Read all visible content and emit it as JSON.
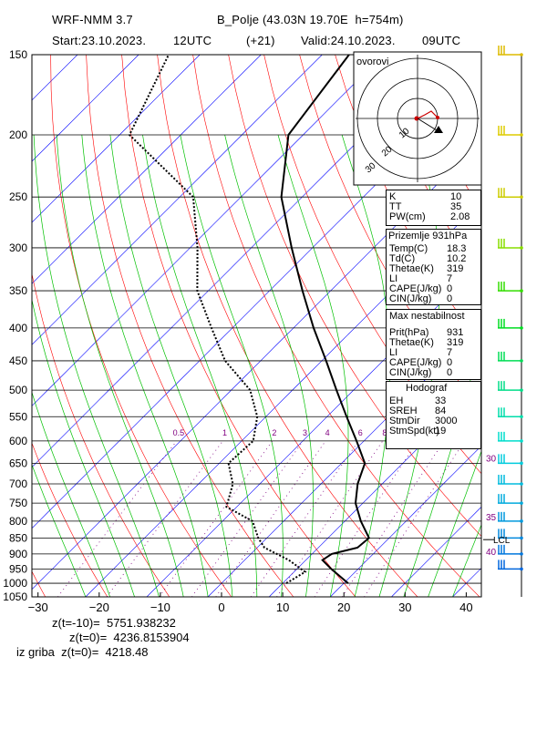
{
  "header": {
    "model": "WRF-NMM 3.7",
    "station": "B_Polje (43.03N 19.70E  h=754m)",
    "start": "Start:23.10.2023.",
    "start_hour": "12UTC",
    "lead": "(+21)",
    "valid": "Valid:24.10.2023.",
    "valid_hour": "09UTC"
  },
  "hodo_label": "ovorovi",
  "indices": {
    "rows": [
      {
        "k": "K",
        "v": "10"
      },
      {
        "k": "TT",
        "v": "35"
      },
      {
        "k": "PW(cm)",
        "v": "2.08"
      }
    ]
  },
  "surface": {
    "title": "Prizemlje 931hPa",
    "rows": [
      {
        "k": "Temp(C)",
        "v": "18.3"
      },
      {
        "k": "Td(C)",
        "v": "10.2"
      },
      {
        "k": "Thetae(K)",
        "v": "319"
      },
      {
        "k": "LI",
        "v": "7"
      },
      {
        "k": "CAPE(J/kg)",
        "v": "0"
      },
      {
        "k": "CIN(J/kg)",
        "v": "0"
      }
    ]
  },
  "maxinst": {
    "title": "Max nestabilnost",
    "rows": [
      {
        "k": "Prit(hPa)",
        "v": "931"
      },
      {
        "k": "Thetae(K)",
        "v": "319"
      },
      {
        "k": "LI",
        "v": "7"
      },
      {
        "k": "CAPE(J/kg)",
        "v": "0"
      },
      {
        "k": "CIN(J/kg)",
        "v": "0"
      }
    ]
  },
  "hodograf": {
    "title": "Hodograf",
    "rows": [
      {
        "k": "EH",
        "v": "33"
      },
      {
        "k": "SREH",
        "v": "84"
      },
      {
        "k": "StmDir",
        "v": "3000"
      },
      {
        "k": "StmSpd(kt)",
        "v": "19"
      }
    ]
  },
  "footer": {
    "z_m10": "z(t=-10)=  5751.938232",
    "z_0": "z(t=0)=  4236.8153904",
    "z_grib": "iz griba  z(t=0)=  4218.48"
  },
  "chart_data": {
    "type": "line",
    "title": "",
    "xlabel": "",
    "ylabel": "",
    "y_scale": "log",
    "pressure_ticks": [
      150,
      200,
      250,
      300,
      350,
      400,
      450,
      500,
      550,
      600,
      650,
      700,
      750,
      800,
      850,
      900,
      950,
      1000,
      1050
    ],
    "temp_ticks": [
      -30,
      -20,
      -10,
      0,
      10,
      20,
      30,
      40
    ],
    "xlim": [
      -30,
      42
    ],
    "ylim": [
      1050,
      150
    ],
    "mixing_ratio_labels": [
      "0.5",
      "1",
      "2",
      "3",
      "4",
      "6",
      "8"
    ],
    "isotherm_labels": [
      "30",
      "35",
      "40"
    ],
    "lcl_label": "LCL",
    "series": [
      {
        "name": "T",
        "style": "solid",
        "points": [
          [
            1000,
            20.7
          ],
          [
            950,
            15.6
          ],
          [
            920,
            12.7
          ],
          [
            900,
            13.2
          ],
          [
            880,
            16.4
          ],
          [
            850,
            16.7
          ],
          [
            800,
            12.6
          ],
          [
            750,
            8.8
          ],
          [
            700,
            6.0
          ],
          [
            650,
            3.8
          ],
          [
            600,
            -1.2
          ],
          [
            550,
            -6.8
          ],
          [
            500,
            -12.8
          ],
          [
            450,
            -19.3
          ],
          [
            400,
            -26.7
          ],
          [
            350,
            -34.6
          ],
          [
            300,
            -43.4
          ],
          [
            250,
            -53.4
          ],
          [
            200,
            -62.4
          ],
          [
            150,
            -65.6
          ]
        ]
      },
      {
        "name": "Td",
        "style": "dotted",
        "points": [
          [
            1000,
            10.6
          ],
          [
            960,
            11.8
          ],
          [
            920,
            7.2
          ],
          [
            880,
            1.2
          ],
          [
            850,
            -1.4
          ],
          [
            800,
            -5.1
          ],
          [
            760,
            -11.7
          ],
          [
            700,
            -14.4
          ],
          [
            650,
            -18.5
          ],
          [
            600,
            -18.1
          ],
          [
            550,
            -21.4
          ],
          [
            500,
            -26.9
          ],
          [
            450,
            -35.8
          ],
          [
            400,
            -43.4
          ],
          [
            350,
            -51.8
          ],
          [
            300,
            -58.8
          ],
          [
            250,
            -67.8
          ],
          [
            200,
            -88.4
          ],
          [
            150,
            -95.1
          ]
        ]
      }
    ]
  },
  "colors": {
    "isobar": "#000000",
    "isotherm": "#0000ff",
    "dry_adiabat": "#ff0000",
    "moist_adiabat": "#00c000",
    "mixing_ratio": "#800080",
    "wind_barb": "#00aa00",
    "hodograph_trace": "#cc0000"
  },
  "wind_barbs": [
    {
      "p": 150,
      "color": "#ddbb00"
    },
    {
      "p": 200,
      "color": "#ddcc00"
    },
    {
      "p": 250,
      "color": "#cccc00"
    },
    {
      "p": 300,
      "color": "#88dd00"
    },
    {
      "p": 350,
      "color": "#33dd00"
    },
    {
      "p": 400,
      "color": "#00dd22"
    },
    {
      "p": 450,
      "color": "#00dd55"
    },
    {
      "p": 500,
      "color": "#00dd88"
    },
    {
      "p": 550,
      "color": "#00ddaa"
    },
    {
      "p": 600,
      "color": "#00ddcc"
    },
    {
      "p": 650,
      "color": "#00ccdd"
    },
    {
      "p": 700,
      "color": "#00bbdd"
    },
    {
      "p": 750,
      "color": "#00aadd"
    },
    {
      "p": 800,
      "color": "#0099dd"
    },
    {
      "p": 850,
      "color": "#0088dd"
    },
    {
      "p": 900,
      "color": "#0077dd"
    },
    {
      "p": 950,
      "color": "#0066dd"
    }
  ]
}
